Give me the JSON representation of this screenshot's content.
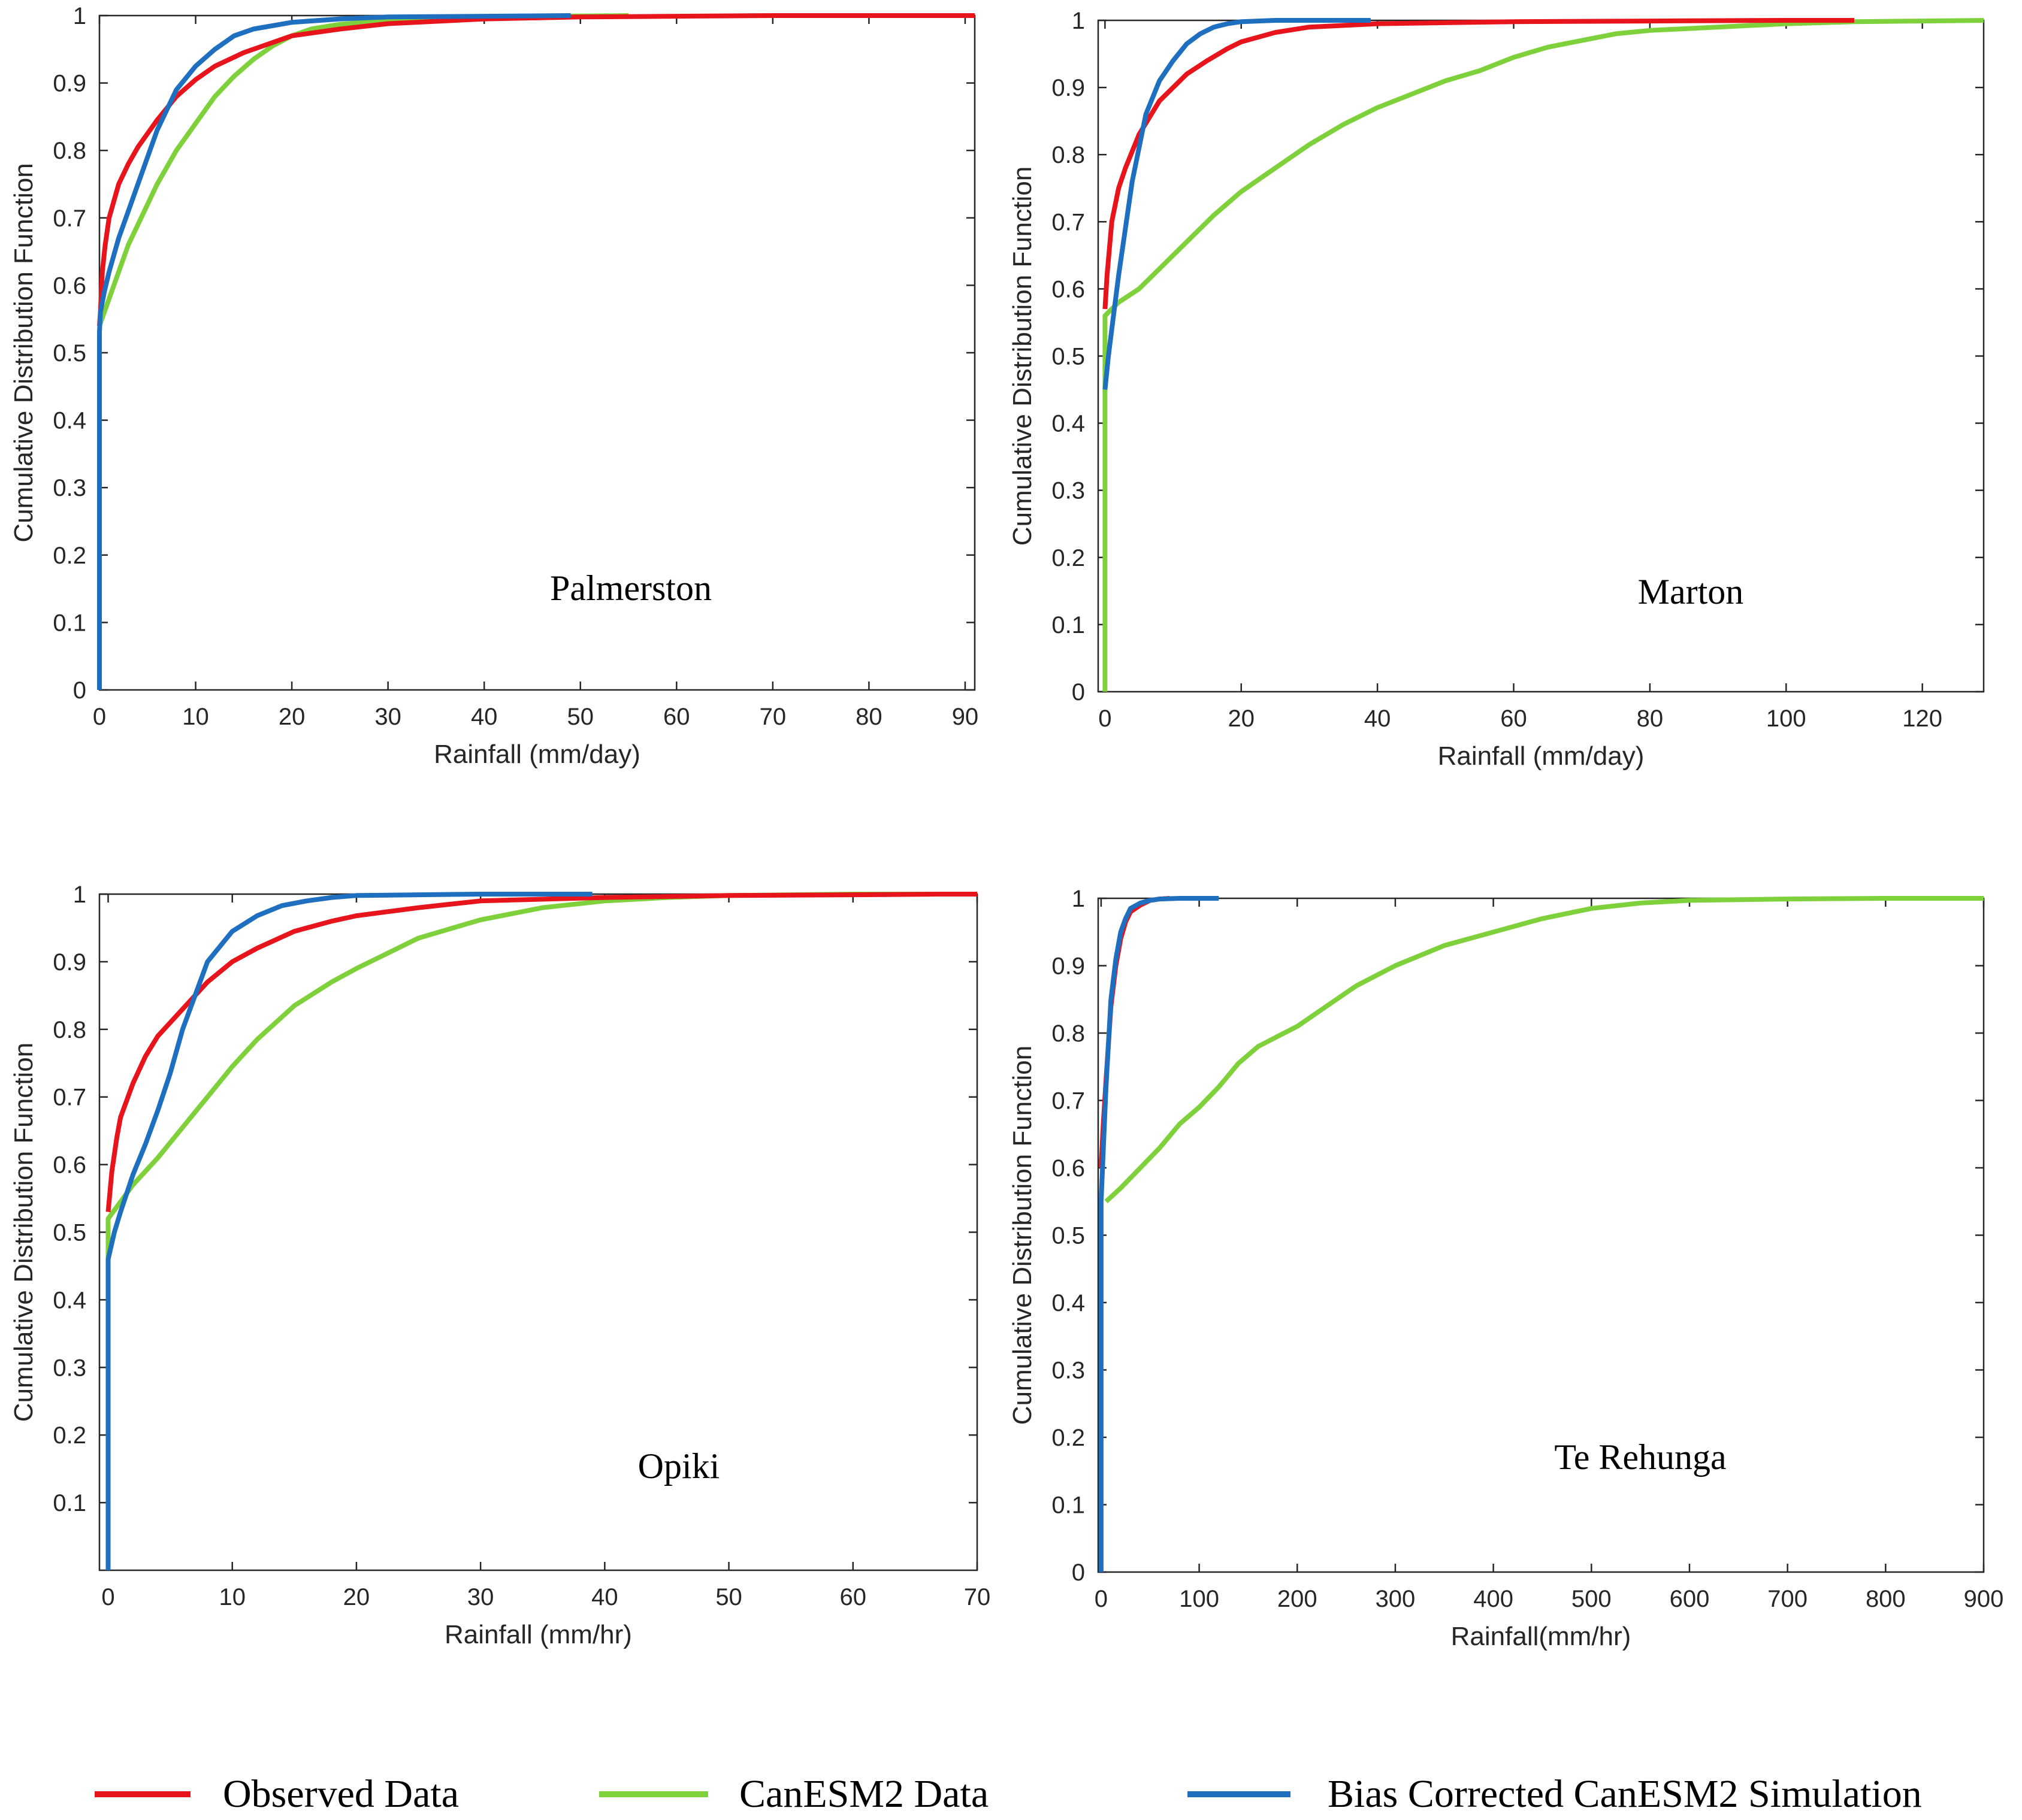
{
  "legend": {
    "entries": [
      {
        "label": "Observed Data",
        "color": "#e8141c"
      },
      {
        "label": "CanESM2 Data",
        "color": "#7fd13b"
      },
      {
        "label": "Bias Corrected CanESM2 Simulation",
        "color": "#1f6fc0"
      }
    ]
  },
  "colors": {
    "observed": "#e8141c",
    "canesm2": "#7fd13b",
    "bias_corrected": "#1f6fc0"
  },
  "chart_data": [
    {
      "type": "line",
      "station": "Palmerston",
      "xlabel": "Rainfall (mm/day)",
      "ylabel": "Cumulative Distribution Function",
      "xlim": [
        0,
        91
      ],
      "ylim": [
        0,
        1
      ],
      "xticks": [
        0,
        10,
        20,
        30,
        40,
        50,
        60,
        70,
        80,
        90
      ],
      "yticks": [
        0,
        0.1,
        0.2,
        0.3,
        0.4,
        0.5,
        0.6,
        0.7,
        0.8,
        0.9,
        1
      ],
      "grid": false,
      "series": [
        {
          "name": "CanESM2 Data",
          "color": "#7fd13b",
          "x": [
            0,
            1,
            2,
            3,
            4,
            6,
            8,
            10,
            12,
            14,
            16,
            18,
            20,
            22,
            25,
            30,
            40,
            55
          ],
          "y": [
            0.54,
            0.58,
            0.62,
            0.66,
            0.69,
            0.75,
            0.8,
            0.84,
            0.88,
            0.91,
            0.935,
            0.955,
            0.97,
            0.98,
            0.987,
            0.993,
            0.998,
            1.0
          ]
        },
        {
          "name": "Observed Data",
          "color": "#e8141c",
          "x": [
            0,
            0.1,
            0.3,
            0.6,
            1,
            2,
            3,
            4,
            6,
            8,
            10,
            12,
            15,
            18,
            20,
            25,
            30,
            40,
            50,
            70,
            91
          ],
          "y": [
            0.54,
            0.56,
            0.62,
            0.66,
            0.7,
            0.75,
            0.78,
            0.805,
            0.845,
            0.88,
            0.905,
            0.925,
            0.945,
            0.96,
            0.97,
            0.98,
            0.988,
            0.995,
            0.998,
            1.0,
            1.0
          ]
        },
        {
          "name": "Bias Corrected CanESM2 Simulation",
          "color": "#1f6fc0",
          "x": [
            0,
            0,
            0.1,
            0.5,
            1,
            2,
            3,
            4,
            6,
            8,
            10,
            12,
            14,
            16,
            20,
            25,
            30,
            40,
            49
          ],
          "y": [
            0,
            0.53,
            0.56,
            0.59,
            0.62,
            0.67,
            0.71,
            0.75,
            0.83,
            0.89,
            0.925,
            0.95,
            0.97,
            0.98,
            0.99,
            0.995,
            0.998,
            0.999,
            1.0
          ]
        }
      ]
    },
    {
      "type": "line",
      "station": "Marton",
      "xlabel": "Rainfall (mm/day)",
      "ylabel": "Cumulative Distribution Function",
      "xlim": [
        -1,
        129
      ],
      "ylim": [
        0,
        1
      ],
      "xticks": [
        0,
        20,
        40,
        60,
        80,
        100,
        120
      ],
      "yticks": [
        0,
        0.1,
        0.2,
        0.3,
        0.4,
        0.5,
        0.6,
        0.7,
        0.8,
        0.9,
        1
      ],
      "grid": false,
      "series": [
        {
          "name": "CanESM2 Data",
          "color": "#7fd13b",
          "x": [
            0,
            0,
            1,
            2,
            5,
            8,
            12,
            16,
            20,
            25,
            30,
            35,
            40,
            45,
            50,
            55,
            60,
            65,
            70,
            75,
            80,
            90,
            100,
            110,
            120,
            129
          ],
          "y": [
            0,
            0.56,
            0.57,
            0.58,
            0.6,
            0.63,
            0.67,
            0.71,
            0.745,
            0.78,
            0.815,
            0.845,
            0.87,
            0.89,
            0.91,
            0.925,
            0.945,
            0.96,
            0.97,
            0.98,
            0.985,
            0.99,
            0.995,
            0.998,
            0.999,
            1.0
          ]
        },
        {
          "name": "Observed Data",
          "color": "#e8141c",
          "x": [
            0,
            0.3,
            1,
            2,
            3,
            5,
            8,
            10,
            12,
            15,
            18,
            20,
            25,
            30,
            40,
            60,
            80,
            100,
            110
          ],
          "y": [
            0.57,
            0.62,
            0.7,
            0.75,
            0.78,
            0.83,
            0.88,
            0.9,
            0.92,
            0.94,
            0.958,
            0.968,
            0.982,
            0.99,
            0.995,
            0.998,
            0.999,
            1.0,
            1.0
          ]
        },
        {
          "name": "Bias Corrected CanESM2 Simulation",
          "color": "#1f6fc0",
          "x": [
            0,
            0.5,
            1,
            2,
            4,
            6,
            8,
            10,
            12,
            14,
            16,
            18,
            20,
            25,
            30,
            39
          ],
          "y": [
            0.45,
            0.5,
            0.54,
            0.62,
            0.76,
            0.86,
            0.91,
            0.94,
            0.965,
            0.98,
            0.99,
            0.995,
            0.998,
            1.0,
            1.0,
            1.0
          ]
        }
      ]
    },
    {
      "type": "line",
      "station": "Opiki",
      "xlabel": "Rainfall (mm/hr)",
      "ylabel": "Cumulative Distribution Function",
      "xlim": [
        -0.7,
        70
      ],
      "ylim": [
        0,
        1
      ],
      "xticks": [
        0,
        10,
        20,
        30,
        40,
        50,
        60,
        70
      ],
      "yticks": [
        0.1,
        0.2,
        0.3,
        0.4,
        0.5,
        0.6,
        0.7,
        0.8,
        0.9,
        1
      ],
      "grid": false,
      "series": [
        {
          "name": "CanESM2 Data",
          "color": "#7fd13b",
          "x": [
            0,
            0,
            1,
            2,
            4,
            6,
            8,
            10,
            12,
            15,
            18,
            20,
            25,
            30,
            35,
            40,
            45,
            50,
            60,
            67
          ],
          "y": [
            0.45,
            0.52,
            0.545,
            0.57,
            0.61,
            0.655,
            0.7,
            0.745,
            0.785,
            0.835,
            0.87,
            0.89,
            0.935,
            0.962,
            0.98,
            0.99,
            0.995,
            0.998,
            1.0,
            1.0
          ]
        },
        {
          "name": "Observed Data",
          "color": "#e8141c",
          "x": [
            0,
            0.3,
            0.7,
            1,
            2,
            3,
            4,
            6,
            8,
            10,
            12,
            15,
            18,
            20,
            25,
            30,
            40,
            50,
            60,
            67,
            70
          ],
          "y": [
            0.53,
            0.59,
            0.64,
            0.67,
            0.72,
            0.76,
            0.79,
            0.83,
            0.87,
            0.9,
            0.92,
            0.945,
            0.96,
            0.968,
            0.98,
            0.99,
            0.995,
            0.998,
            0.999,
            1.0,
            1.0
          ]
        },
        {
          "name": "Bias Corrected CanESM2 Simulation",
          "color": "#1f6fc0",
          "x": [
            0,
            0,
            0.5,
            1,
            2,
            3,
            4,
            5,
            6,
            8,
            10,
            12,
            14,
            16,
            18,
            20,
            25,
            30,
            39
          ],
          "y": [
            0,
            0.46,
            0.5,
            0.53,
            0.585,
            0.63,
            0.68,
            0.735,
            0.8,
            0.9,
            0.945,
            0.968,
            0.983,
            0.99,
            0.995,
            0.998,
            0.999,
            1.0,
            1.0
          ]
        }
      ]
    },
    {
      "type": "line",
      "station": "Te Rehunga",
      "xlabel": "Rainfall(mm/hr)",
      "ylabel": "Cumulative Distribution Function",
      "xlim": [
        -3,
        900
      ],
      "ylim": [
        0,
        1
      ],
      "xticks": [
        0,
        100,
        200,
        300,
        400,
        500,
        600,
        700,
        800,
        900
      ],
      "yticks": [
        0,
        0.1,
        0.2,
        0.3,
        0.4,
        0.5,
        0.6,
        0.7,
        0.8,
        0.9,
        1
      ],
      "grid": false,
      "series": [
        {
          "name": "CanESM2 Data",
          "color": "#7fd13b",
          "x": [
            5,
            20,
            40,
            60,
            80,
            100,
            120,
            140,
            160,
            180,
            200,
            230,
            260,
            300,
            350,
            400,
            450,
            500,
            550,
            600,
            700,
            800,
            900
          ],
          "y": [
            0.55,
            0.57,
            0.6,
            0.63,
            0.665,
            0.69,
            0.72,
            0.755,
            0.78,
            0.795,
            0.81,
            0.84,
            0.87,
            0.9,
            0.93,
            0.95,
            0.97,
            0.985,
            0.993,
            0.997,
            0.999,
            1.0,
            1.0
          ]
        },
        {
          "name": "Observed Data",
          "color": "#e8141c",
          "x": [
            0,
            2,
            5,
            10,
            15,
            20,
            25,
            30,
            40,
            50,
            60,
            70
          ],
          "y": [
            0.6,
            0.66,
            0.73,
            0.84,
            0.9,
            0.94,
            0.965,
            0.98,
            0.99,
            0.997,
            0.999,
            1.0
          ]
        },
        {
          "name": "Bias Corrected CanESM2 Simulation",
          "color": "#1f6fc0",
          "x": [
            0,
            0,
            2,
            5,
            10,
            15,
            20,
            25,
            30,
            40,
            50,
            60,
            80,
            100,
            120
          ],
          "y": [
            0,
            0.55,
            0.62,
            0.72,
            0.85,
            0.91,
            0.95,
            0.97,
            0.985,
            0.993,
            0.997,
            0.999,
            1.0,
            1.0,
            1.0
          ]
        }
      ]
    }
  ]
}
